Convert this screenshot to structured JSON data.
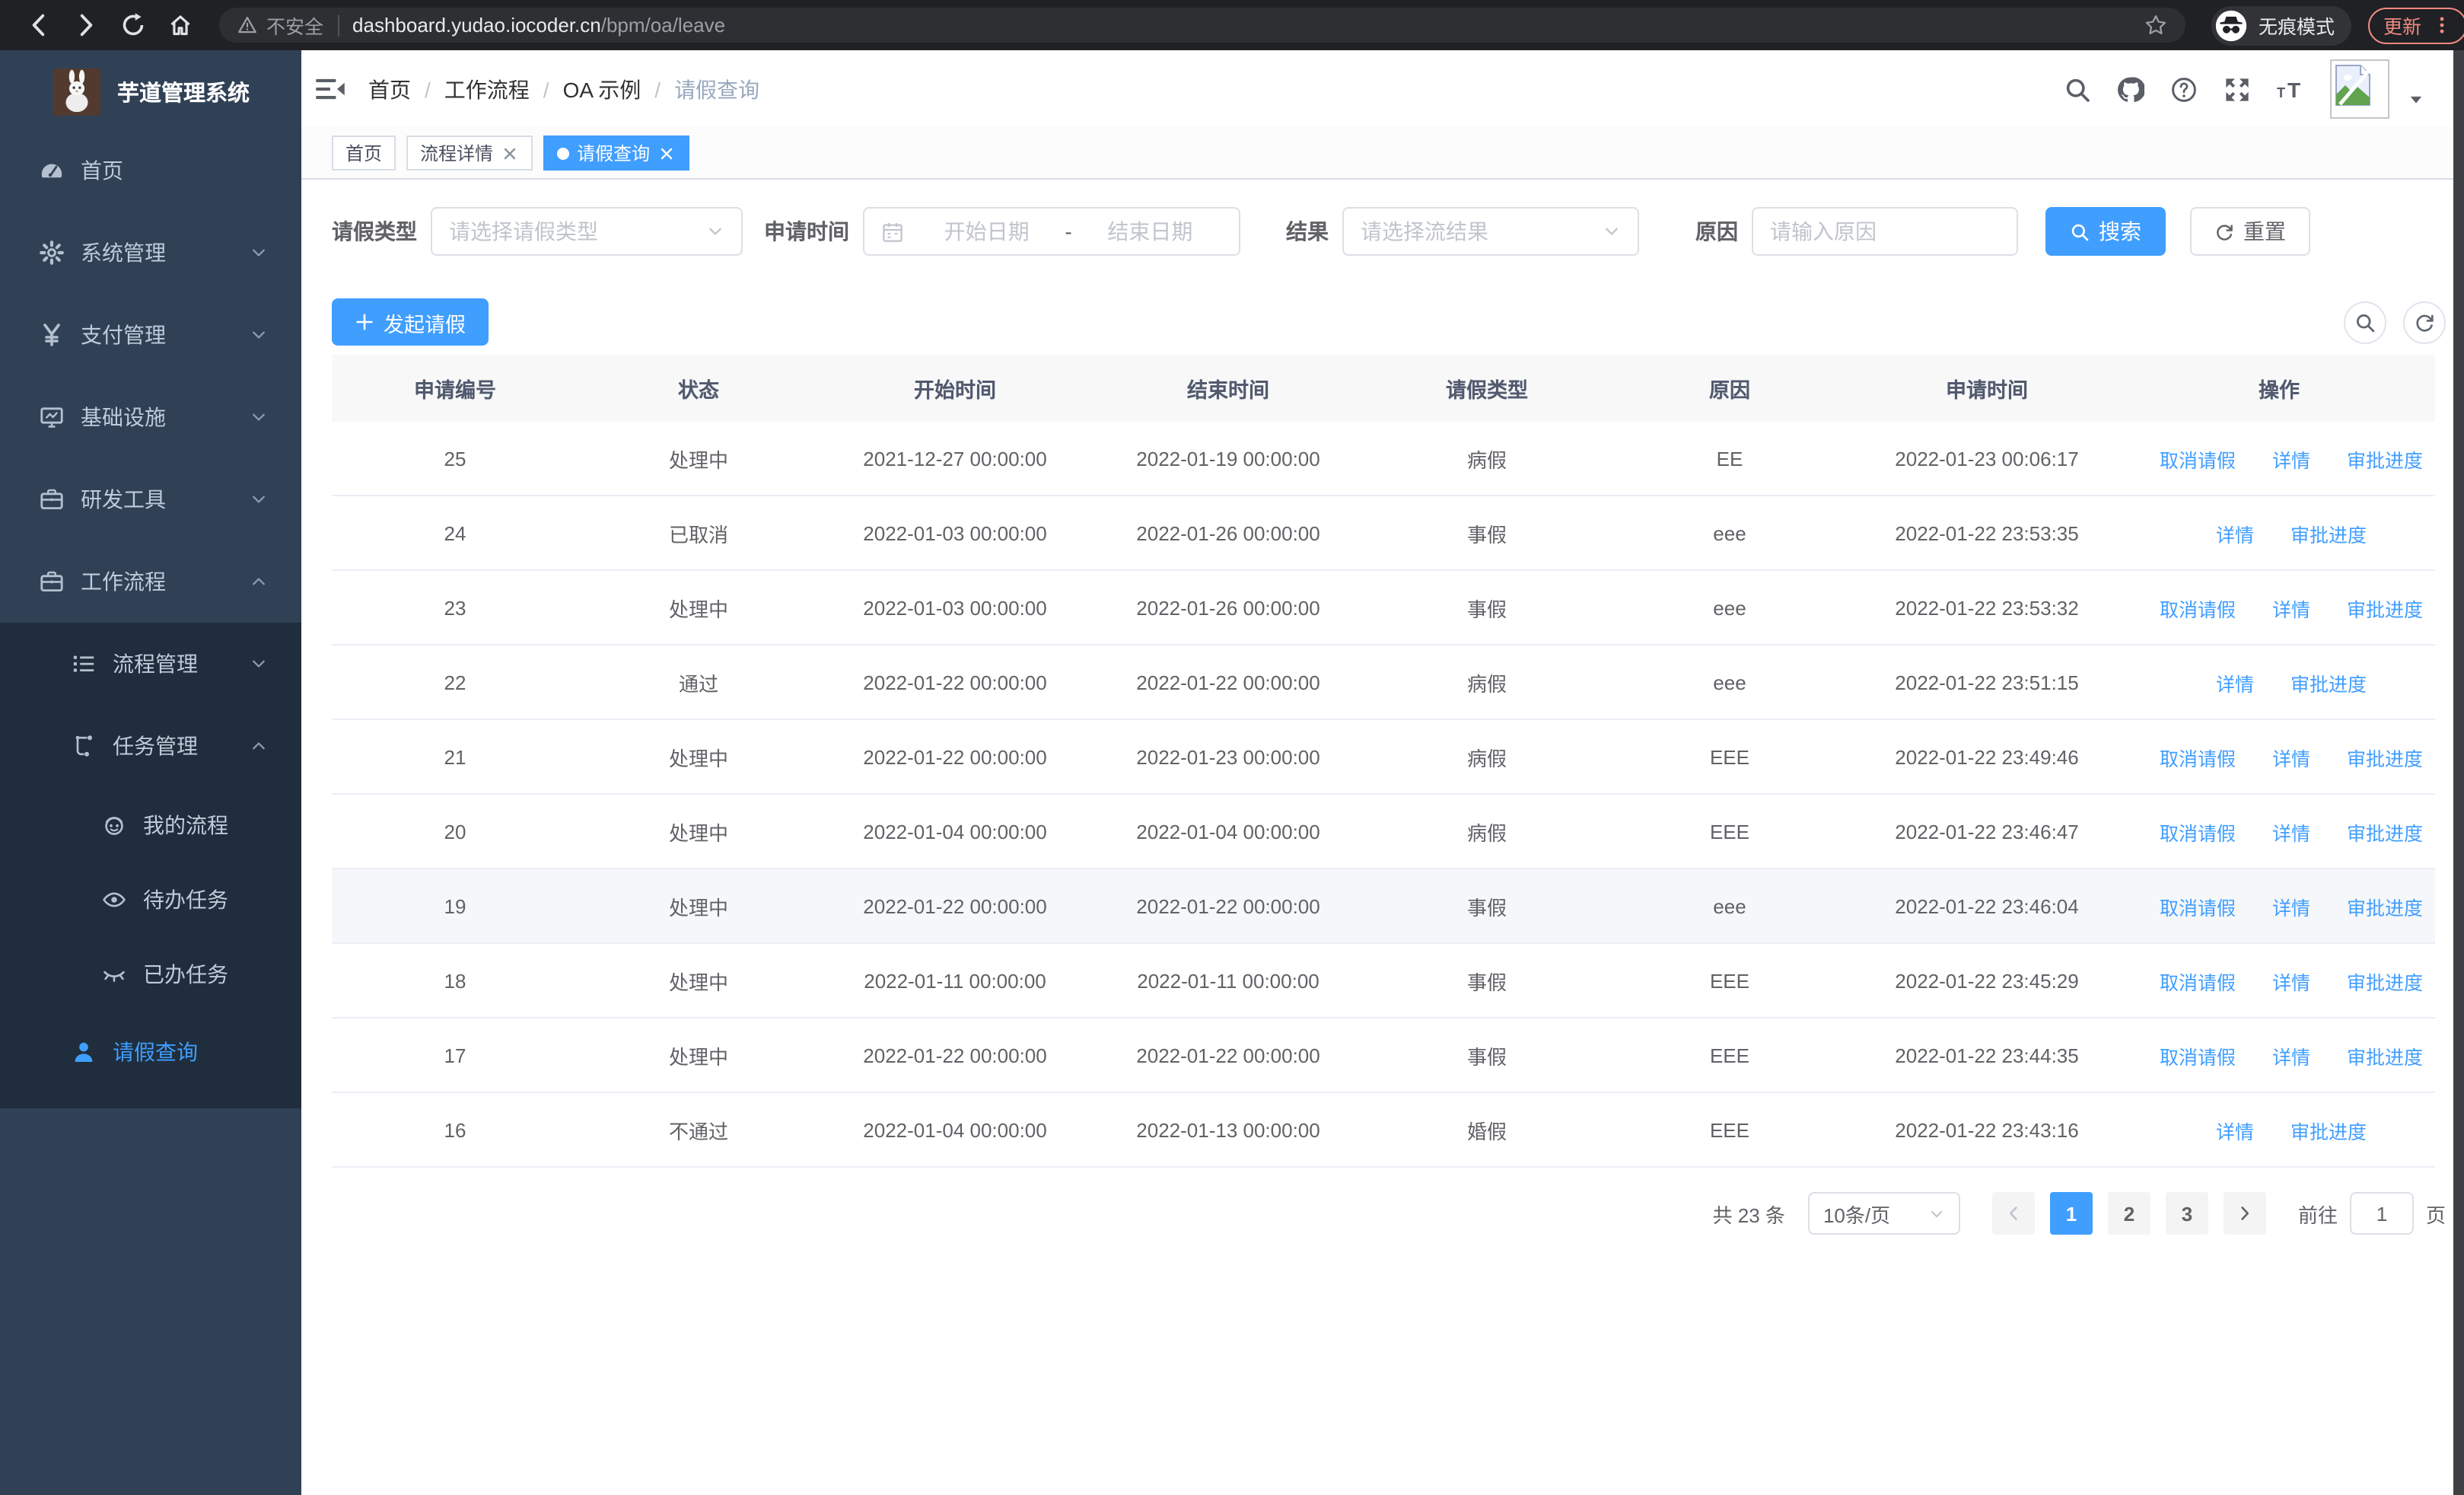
{
  "browser": {
    "security_label": "不安全",
    "url_domain": "dashboard.yudao.iocoder.cn",
    "url_path": "/bpm/oa/leave",
    "incognito_label": "无痕模式",
    "update_label": "更新"
  },
  "sidebar": {
    "app_title": "芋道管理系统",
    "items": [
      {
        "label": "首页",
        "icon": "gauge",
        "level": 1
      },
      {
        "label": "系统管理",
        "icon": "gear",
        "level": 1,
        "chevron": "down"
      },
      {
        "label": "支付管理",
        "icon": "yen",
        "level": 1,
        "chevron": "down"
      },
      {
        "label": "基础设施",
        "icon": "monitor",
        "level": 1,
        "chevron": "down"
      },
      {
        "label": "研发工具",
        "icon": "briefcase",
        "level": 1,
        "chevron": "down"
      },
      {
        "label": "工作流程",
        "icon": "briefcase",
        "level": 1,
        "chevron": "up"
      },
      {
        "label": "流程管理",
        "icon": "list",
        "level": 2,
        "chevron": "down",
        "group": "sub"
      },
      {
        "label": "任务管理",
        "icon": "flow",
        "level": 2,
        "chevron": "up",
        "group": "sub"
      },
      {
        "label": "我的流程",
        "icon": "robot",
        "level": 3,
        "group": "sub"
      },
      {
        "label": "待办任务",
        "icon": "eye",
        "level": 3,
        "group": "sub"
      },
      {
        "label": "已办任务",
        "icon": "eyeclosed",
        "level": 3,
        "group": "sub"
      },
      {
        "label": "请假查询",
        "icon": "person",
        "level": 2,
        "active": true,
        "group": "sub"
      }
    ]
  },
  "header": {
    "breadcrumb": [
      "首页",
      "工作流程",
      "OA 示例",
      "请假查询"
    ],
    "breadcrumb_separator": "/"
  },
  "tags": [
    {
      "label": "首页",
      "closable": false,
      "active": false
    },
    {
      "label": "流程详情",
      "closable": true,
      "active": false
    },
    {
      "label": "请假查询",
      "closable": true,
      "active": true
    }
  ],
  "filters": {
    "leave_type_label": "请假类型",
    "leave_type_placeholder": "请选择请假类型",
    "apply_time_label": "申请时间",
    "date_start_placeholder": "开始日期",
    "date_separator": "-",
    "date_end_placeholder": "结束日期",
    "result_label": "结果",
    "result_placeholder": "请选择流结果",
    "reason_label": "原因",
    "reason_placeholder": "请输入原因",
    "search_label": "搜索",
    "reset_label": "重置"
  },
  "toolbar": {
    "create_label": "发起请假"
  },
  "table": {
    "columns": [
      "申请编号",
      "状态",
      "开始时间",
      "结束时间",
      "请假类型",
      "原因",
      "申请时间",
      "操作"
    ],
    "action_labels": {
      "cancel": "取消请假",
      "detail": "详情",
      "progress": "审批进度"
    },
    "rows": [
      {
        "id": "25",
        "status": "处理中",
        "start": "2021-12-27 00:00:00",
        "end": "2022-01-19 00:00:00",
        "type": "病假",
        "reason": "EE",
        "applied": "2022-01-23 00:06:17",
        "cancellable": true,
        "highlight": false
      },
      {
        "id": "24",
        "status": "已取消",
        "start": "2022-01-03 00:00:00",
        "end": "2022-01-26 00:00:00",
        "type": "事假",
        "reason": "eee",
        "applied": "2022-01-22 23:53:35",
        "cancellable": false,
        "highlight": false
      },
      {
        "id": "23",
        "status": "处理中",
        "start": "2022-01-03 00:00:00",
        "end": "2022-01-26 00:00:00",
        "type": "事假",
        "reason": "eee",
        "applied": "2022-01-22 23:53:32",
        "cancellable": true,
        "highlight": false
      },
      {
        "id": "22",
        "status": "通过",
        "start": "2022-01-22 00:00:00",
        "end": "2022-01-22 00:00:00",
        "type": "病假",
        "reason": "eee",
        "applied": "2022-01-22 23:51:15",
        "cancellable": false,
        "highlight": false
      },
      {
        "id": "21",
        "status": "处理中",
        "start": "2022-01-22 00:00:00",
        "end": "2022-01-23 00:00:00",
        "type": "病假",
        "reason": "EEE",
        "applied": "2022-01-22 23:49:46",
        "cancellable": true,
        "highlight": false
      },
      {
        "id": "20",
        "status": "处理中",
        "start": "2022-01-04 00:00:00",
        "end": "2022-01-04 00:00:00",
        "type": "病假",
        "reason": "EEE",
        "applied": "2022-01-22 23:46:47",
        "cancellable": true,
        "highlight": false
      },
      {
        "id": "19",
        "status": "处理中",
        "start": "2022-01-22 00:00:00",
        "end": "2022-01-22 00:00:00",
        "type": "事假",
        "reason": "eee",
        "applied": "2022-01-22 23:46:04",
        "cancellable": true,
        "highlight": true
      },
      {
        "id": "18",
        "status": "处理中",
        "start": "2022-01-11 00:00:00",
        "end": "2022-01-11 00:00:00",
        "type": "事假",
        "reason": "EEE",
        "applied": "2022-01-22 23:45:29",
        "cancellable": true,
        "highlight": false
      },
      {
        "id": "17",
        "status": "处理中",
        "start": "2022-01-22 00:00:00",
        "end": "2022-01-22 00:00:00",
        "type": "事假",
        "reason": "EEE",
        "applied": "2022-01-22 23:44:35",
        "cancellable": true,
        "highlight": false
      },
      {
        "id": "16",
        "status": "不通过",
        "start": "2022-01-04 00:00:00",
        "end": "2022-01-13 00:00:00",
        "type": "婚假",
        "reason": "EEE",
        "applied": "2022-01-22 23:43:16",
        "cancellable": false,
        "highlight": false
      }
    ]
  },
  "pagination": {
    "total_label": "共 23 条",
    "page_size": "10条/页",
    "pages": [
      "1",
      "2",
      "3"
    ],
    "active_page": "1",
    "goto_label": "前往",
    "goto_value": "1",
    "goto_suffix": "页"
  },
  "colors": {
    "accent": "#409eff",
    "sidebar_bg": "#304156",
    "submenu_bg": "#1f2d3d",
    "browser_bar": "#202124",
    "update_accent": "#ef8a80",
    "row_highlight": "#f5f7fa"
  }
}
